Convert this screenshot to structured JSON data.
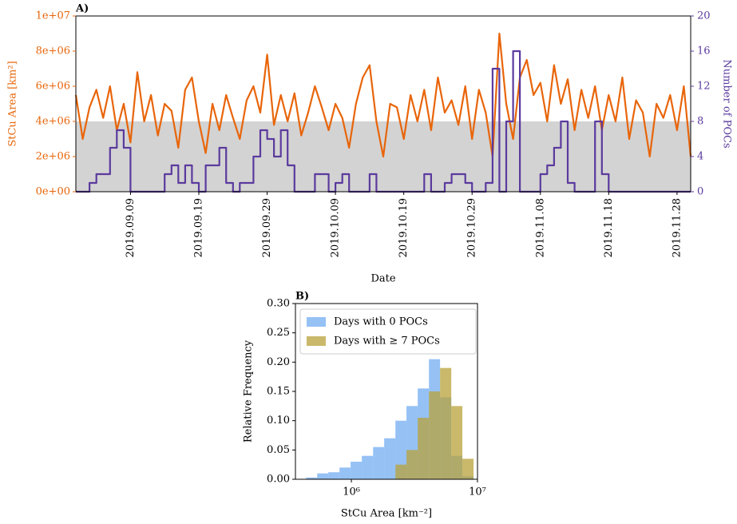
{
  "chart_data": [
    {
      "type": "line",
      "panel_label": "A)",
      "xlabel": "Date",
      "ylabel": "StCu Area [km²]",
      "y2label": "Number of POCs",
      "xlim": [
        "2019.09.01",
        "2019.11.30"
      ],
      "xticks": [
        "2019.09.09",
        "2019.09.19",
        "2019.09.29",
        "2019.10.09",
        "2019.10.19",
        "2019.10.29",
        "2019.11.08",
        "2019.11.18",
        "2019.11.28"
      ],
      "ylim": [
        0,
        10000000.0
      ],
      "yticks": [
        {
          "value": 0,
          "label": "0e+00"
        },
        {
          "value": 2000000.0,
          "label": "2e+06"
        },
        {
          "value": 4000000.0,
          "label": "4e+06"
        },
        {
          "value": 6000000.0,
          "label": "6e+06"
        },
        {
          "value": 8000000.0,
          "label": "8e+06"
        },
        {
          "value": 10000000.0,
          "label": "1e+07"
        }
      ],
      "y2lim": [
        0,
        20
      ],
      "y2ticks": [
        0,
        4,
        8,
        12,
        16,
        20
      ],
      "shaded_range": [
        0,
        4000000.0
      ],
      "shade_color": "#d3d3d3",
      "x": [
        "2019.09.01",
        "2019.09.02",
        "2019.09.03",
        "2019.09.04",
        "2019.09.05",
        "2019.09.06",
        "2019.09.07",
        "2019.09.08",
        "2019.09.09",
        "2019.09.10",
        "2019.09.11",
        "2019.09.12",
        "2019.09.13",
        "2019.09.14",
        "2019.09.15",
        "2019.09.16",
        "2019.09.17",
        "2019.09.18",
        "2019.09.19",
        "2019.09.20",
        "2019.09.21",
        "2019.09.22",
        "2019.09.23",
        "2019.09.24",
        "2019.09.25",
        "2019.09.26",
        "2019.09.27",
        "2019.09.28",
        "2019.09.29",
        "2019.09.30",
        "2019.10.01",
        "2019.10.02",
        "2019.10.03",
        "2019.10.04",
        "2019.10.05",
        "2019.10.06",
        "2019.10.07",
        "2019.10.08",
        "2019.10.09",
        "2019.10.10",
        "2019.10.11",
        "2019.10.12",
        "2019.10.13",
        "2019.10.14",
        "2019.10.15",
        "2019.10.16",
        "2019.10.17",
        "2019.10.18",
        "2019.10.19",
        "2019.10.20",
        "2019.10.21",
        "2019.10.22",
        "2019.10.23",
        "2019.10.24",
        "2019.10.25",
        "2019.10.26",
        "2019.10.27",
        "2019.10.28",
        "2019.10.29",
        "2019.10.30",
        "2019.10.31",
        "2019.11.01",
        "2019.11.02",
        "2019.11.03",
        "2019.11.04",
        "2019.11.05",
        "2019.11.06",
        "2019.11.07",
        "2019.11.08",
        "2019.11.09",
        "2019.11.10",
        "2019.11.11",
        "2019.11.12",
        "2019.11.13",
        "2019.11.14",
        "2019.11.15",
        "2019.11.16",
        "2019.11.17",
        "2019.11.18",
        "2019.11.19",
        "2019.11.20",
        "2019.11.21",
        "2019.11.22",
        "2019.11.23",
        "2019.11.24",
        "2019.11.25",
        "2019.11.26",
        "2019.11.27",
        "2019.11.28",
        "2019.11.29",
        "2019.11.30"
      ],
      "series": [
        {
          "color": "#e8650a",
          "values": [
            5500000.0,
            3000000.0,
            4800000.0,
            5800000.0,
            4200000.0,
            6000000.0,
            3500000.0,
            5000000.0,
            2800000.0,
            6800000.0,
            4000000.0,
            5500000.0,
            3200000.0,
            5000000.0,
            4600000.0,
            2500000.0,
            5800000.0,
            6500000.0,
            4000000.0,
            2200000.0,
            5000000.0,
            3500000.0,
            5500000.0,
            4200000.0,
            3000000.0,
            5200000.0,
            6000000.0,
            4500000.0,
            7800000.0,
            3800000.0,
            5500000.0,
            4000000.0,
            5600000.0,
            3200000.0,
            4500000.0,
            6000000.0,
            4800000.0,
            3500000.0,
            5000000.0,
            4200000.0,
            2500000.0,
            5000000.0,
            6500000.0,
            7200000.0,
            4000000.0,
            2000000.0,
            5000000.0,
            4800000.0,
            3000000.0,
            5500000.0,
            4000000.0,
            5800000.0,
            3500000.0,
            6500000.0,
            4500000.0,
            5200000.0,
            3800000.0,
            6000000.0,
            3000000.0,
            5800000.0,
            4500000.0,
            2000000.0,
            9000000.0,
            5000000.0,
            3000000.0,
            6500000.0,
            7500000.0,
            5500000.0,
            6200000.0,
            4000000.0,
            7200000.0,
            5000000.0,
            6400000.0,
            3500000.0,
            5800000.0,
            4200000.0,
            6000000.0,
            3500000.0,
            5500000.0,
            4000000.0,
            6500000.0,
            3000000.0,
            5200000.0,
            4500000.0,
            2000000.0,
            5000000.0,
            4200000.0,
            5500000.0,
            3500000.0,
            6000000.0,
            2000000.0
          ]
        },
        {
          "color": "#5b3a9e",
          "axis": "y2",
          "values": [
            0,
            0,
            1,
            2,
            2,
            5,
            7,
            5,
            0,
            0,
            0,
            0,
            0,
            2,
            3,
            1,
            3,
            1,
            0,
            3,
            3,
            5,
            1,
            0,
            1,
            1,
            4,
            7,
            6,
            4,
            7,
            3,
            0,
            0,
            0,
            2,
            2,
            0,
            1,
            2,
            0,
            0,
            0,
            2,
            0,
            0,
            0,
            0,
            0,
            0,
            0,
            2,
            0,
            0,
            1,
            2,
            2,
            1,
            0,
            0,
            1,
            14,
            0,
            8,
            16,
            0,
            0,
            0,
            2,
            3,
            5,
            8,
            1,
            0,
            0,
            0,
            8,
            2,
            0,
            0,
            0,
            0,
            0,
            0,
            0,
            0,
            0,
            0,
            0,
            0,
            0
          ]
        }
      ]
    },
    {
      "type": "histogram",
      "panel_label": "B)",
      "xlabel": "StCu Area [km⁻²]",
      "ylabel": "Relative Frequency",
      "log_x": true,
      "xlim": [
        360000,
        10000000
      ],
      "xticks": [
        {
          "value": 1000000,
          "label": "10⁶"
        },
        {
          "value": 10000000,
          "label": "10⁷"
        }
      ],
      "ylim": [
        0,
        0.3
      ],
      "yticks": [
        {
          "value": 0,
          "label": "0.00"
        },
        {
          "value": 0.05,
          "label": "0.05"
        },
        {
          "value": 0.1,
          "label": "0.10"
        },
        {
          "value": 0.15,
          "label": "0.15"
        },
        {
          "value": 0.2,
          "label": "0.20"
        },
        {
          "value": 0.25,
          "label": "0.25"
        },
        {
          "value": 0.3,
          "label": "0.30"
        }
      ],
      "legend": "upper left",
      "bins": [
        437000,
        536000,
        656000,
        805000,
        986000,
        1210000,
        1486000,
        1820000,
        2234000,
        2735000,
        3357000,
        4121000,
        5047000,
        6194000,
        7586000,
        9311000
      ],
      "series": [
        {
          "name": "Days with 0 POCs",
          "color": "#4f97ef",
          "opacity": 0.6,
          "values": [
            0.003,
            0.01,
            0.012,
            0.02,
            0.03,
            0.04,
            0.055,
            0.07,
            0.1,
            0.125,
            0.155,
            0.205,
            0.14,
            0.04,
            0.005
          ]
        },
        {
          "name": "Days with ≥ 7 POCs",
          "color": "#b8a23a",
          "opacity": 0.75,
          "values": [
            0,
            0,
            0,
            0,
            0,
            0,
            0,
            0,
            0.025,
            0.05,
            0.105,
            0.15,
            0.19,
            0.125,
            0.035
          ]
        }
      ]
    }
  ]
}
